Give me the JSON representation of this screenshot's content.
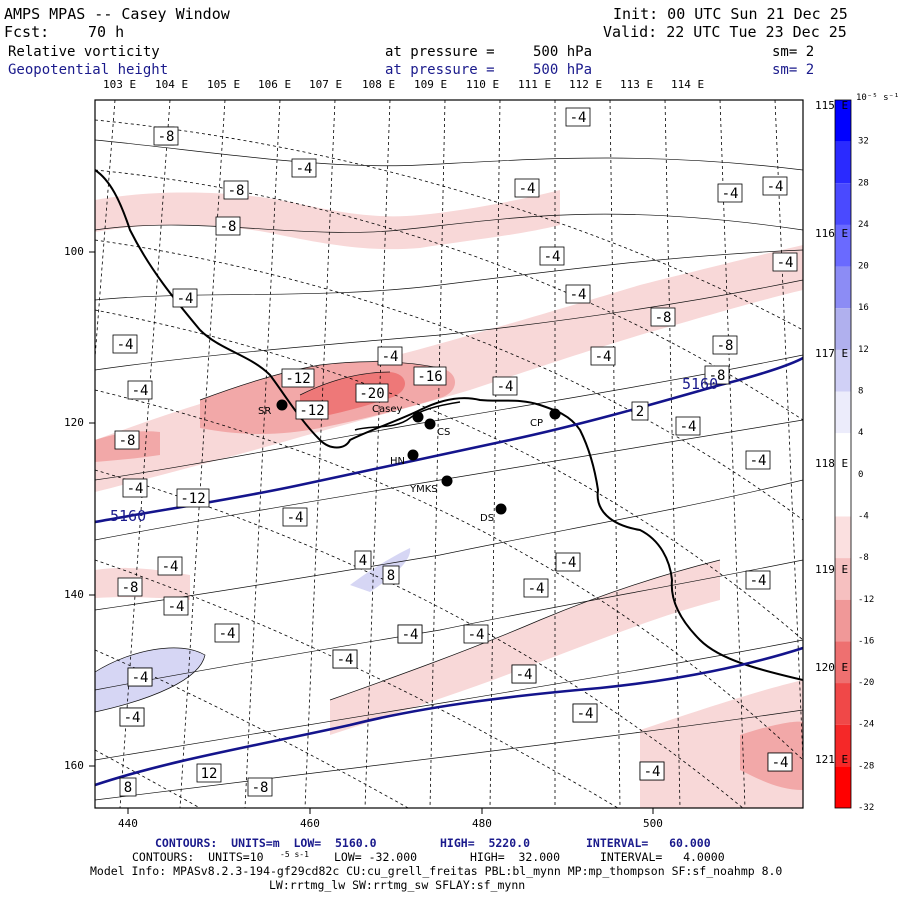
{
  "header": {
    "title": "AMPS MPAS -- Casey Window",
    "init": "Init: 00 UTC Sun 21 Dec 25",
    "fcst_label": "Fcst:",
    "fcst_value": "70 h",
    "valid": "Valid: 22 UTC Tue 23 Dec 25",
    "fields": [
      {
        "name": "Relative vorticity",
        "at": "at pressure =",
        "pressure": "500 hPa",
        "sm": "sm= 2",
        "color": "#000000"
      },
      {
        "name": "Geopotential height",
        "at": "at pressure =",
        "pressure": "500 hPa",
        "sm": "sm= 2",
        "color": "#1a1a8c"
      }
    ]
  },
  "axes": {
    "top_lon_labels": [
      "103 E",
      "104 E",
      "105 E",
      "106 E",
      "107 E",
      "108 E",
      "109 E",
      "110 E",
      "111 E",
      "112 E",
      "113 E",
      "114 E"
    ],
    "right_lon_labels": [
      "115 E",
      "116 E",
      "117 E",
      "118 E",
      "119 E",
      "120 E",
      "121 E"
    ],
    "x_ticks": [
      "440",
      "460",
      "480",
      "500"
    ],
    "y_ticks": [
      "100",
      "120",
      "140",
      "160"
    ]
  },
  "colorbar": {
    "unit": "10⁻⁵ s⁻¹",
    "labels": [
      "32",
      "28",
      "24",
      "20",
      "16",
      "12",
      "8",
      "4",
      "0",
      "-4",
      "-8",
      "-12",
      "-16",
      "-20",
      "-24",
      "-28",
      "-32"
    ],
    "colors": [
      "#0000ff",
      "#2a2aff",
      "#4a4aff",
      "#6a6aff",
      "#8c8cf5",
      "#b0b0ee",
      "#d0d0f6",
      "#ececfb",
      "#ffffff",
      "#ffffff",
      "#fbe0e0",
      "#f6c0c0",
      "#f09898",
      "#ee7070",
      "#f04848",
      "#f52828",
      "#ff0000"
    ]
  },
  "stations": [
    {
      "name": "SR"
    },
    {
      "name": "Casey"
    },
    {
      "name": "CS"
    },
    {
      "name": "CP"
    },
    {
      "name": "HN"
    },
    {
      "name": "YMKS"
    },
    {
      "name": "DS"
    }
  ],
  "height_labels": [
    "5160",
    "5160"
  ],
  "vort_labels": [
    "4",
    "-4",
    "-8",
    "-4",
    "-8",
    "-4",
    "-4",
    "-4",
    "-4",
    "-4",
    "-4",
    "-4",
    "-8",
    "-4",
    "-4",
    "-8",
    "-4",
    "-4",
    "-4",
    "-12",
    "-8",
    "-16",
    "-20",
    "-8",
    "-12",
    "2",
    "-4",
    "-4",
    "-4",
    "-12",
    "-4",
    "-4",
    "-4",
    "-4",
    "-4",
    "-4",
    "-4",
    "4",
    "8",
    "-8",
    "-4",
    "-4",
    "-4",
    "-8",
    "-4",
    "-4",
    "-4",
    "-4",
    "-4",
    "12",
    "8",
    "-8",
    "-4",
    "-4",
    "-4",
    "-4",
    "-4",
    "-4",
    "-4",
    "-4",
    "-8"
  ],
  "footer": {
    "line1_a": "CONTOURS:  UNITS=m  LOW=  5160.0",
    "line1_b": "HIGH=  5220.0",
    "line1_c": "INTERVAL=   60.000",
    "line2_a": "CONTOURS:  UNITS=10",
    "line2_b": "LOW= -32.000",
    "line2_c": "HIGH=  32.000",
    "line2_d": "INTERVAL=   4.0000",
    "line2_unit": "-5 s-1",
    "line3": "Model Info: MPASv8.2.3-194-gf29cd82c CU:cu_grell_freitas PBL:bl_mynn MP:mp_thompson SF:sf_noahmp 8.0",
    "line4": "LW:rrtmg_lw SW:rrtmg_sw SFLAY:sf_mynn"
  }
}
